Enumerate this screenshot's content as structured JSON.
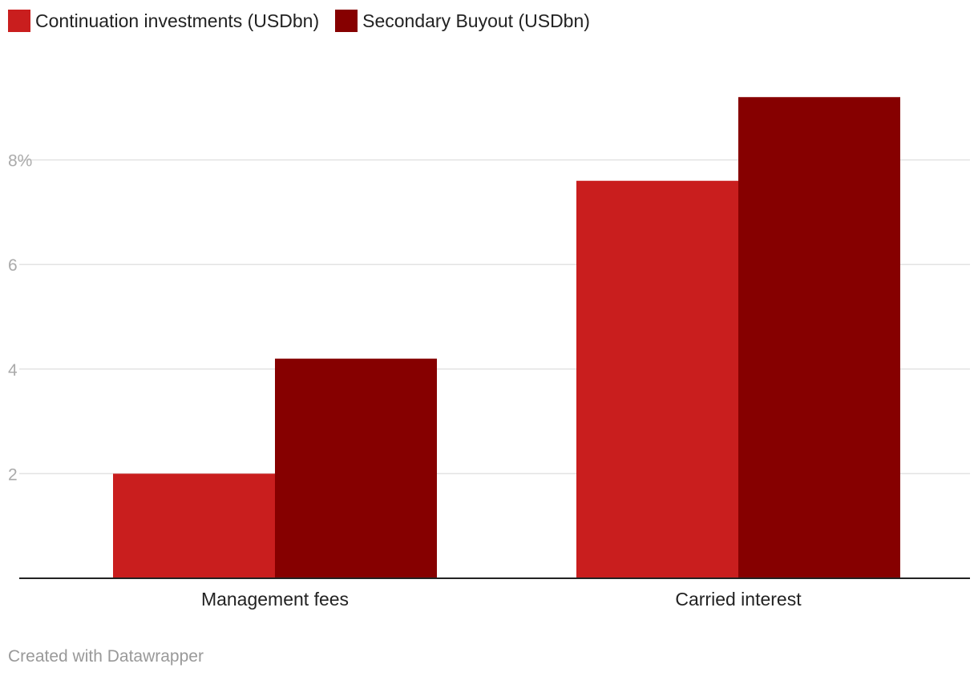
{
  "chart_data": {
    "type": "bar",
    "categories": [
      "Management fees",
      "Carried interest"
    ],
    "series": [
      {
        "name": "Continuation investments (USDbn)",
        "color": "#c91e1e",
        "values": [
          2.0,
          7.6
        ]
      },
      {
        "name": "Secondary Buyout (USDbn)",
        "color": "#860000",
        "values": [
          4.2,
          9.2
        ]
      }
    ],
    "yticks": [
      {
        "value": 2,
        "label": "2"
      },
      {
        "value": 4,
        "label": "4"
      },
      {
        "value": 6,
        "label": "6"
      },
      {
        "value": 8,
        "label": "8%"
      }
    ],
    "ylim": [
      0,
      10
    ],
    "grid": true,
    "legend_position": "top-left"
  },
  "footer": {
    "credit": "Created with Datawrapper"
  }
}
